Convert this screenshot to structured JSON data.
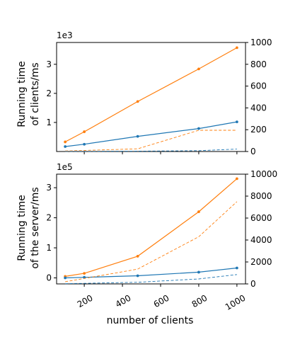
{
  "chart_data": [
    {
      "type": "line",
      "multiplier_label": "1e3",
      "ylabel": [
        "Running time",
        "of clients/ms"
      ],
      "x": [
        100,
        200,
        480,
        800,
        1000
      ],
      "left_axis": {
        "ylim": [
          0,
          3.75
        ],
        "ticks": [
          1,
          2,
          3
        ],
        "tick_labels": [
          "1",
          "2",
          "3"
        ]
      },
      "right_axis": {
        "ylim": [
          0,
          1000
        ],
        "ticks": [
          0,
          200,
          400,
          600,
          800,
          1000
        ],
        "tick_labels": [
          "0",
          "200",
          "400",
          "600",
          "800",
          "1000"
        ]
      },
      "series": [
        {
          "axis": "left",
          "style": "solid-marker",
          "color": "#ff7f0e",
          "values": [
            0.33,
            0.68,
            1.72,
            2.84,
            3.57
          ]
        },
        {
          "axis": "left",
          "style": "solid-marker",
          "color": "#1f77b4",
          "values": [
            0.17,
            0.25,
            0.52,
            0.79,
            1.02
          ]
        },
        {
          "axis": "right",
          "style": "dashed",
          "color": "#ff7f0e",
          "values": [
            5,
            10,
            25,
            195,
            195
          ]
        },
        {
          "axis": "right",
          "style": "dashed",
          "color": "#1f77b4",
          "values": [
            1,
            2,
            3,
            8,
            22
          ]
        }
      ]
    },
    {
      "type": "line",
      "multiplier_label": "1e5",
      "ylabel": [
        "Running time",
        "of the server/ms"
      ],
      "x": [
        100,
        200,
        480,
        800,
        1000
      ],
      "left_axis": {
        "ylim": [
          -0.2,
          3.45
        ],
        "ticks": [
          0,
          1,
          2,
          3
        ],
        "tick_labels": [
          "0",
          "1",
          "2",
          "3"
        ]
      },
      "right_axis": {
        "ylim": [
          0,
          10000
        ],
        "ticks": [
          0,
          2000,
          4000,
          6000,
          8000,
          10000
        ],
        "tick_labels": [
          "0",
          "2000",
          "4000",
          "6000",
          "8000",
          "10000"
        ]
      },
      "series": [
        {
          "axis": "left",
          "style": "solid-marker",
          "color": "#ff7f0e",
          "values": [
            0.05,
            0.15,
            0.72,
            2.2,
            3.3
          ]
        },
        {
          "axis": "left",
          "style": "solid-marker",
          "color": "#1f77b4",
          "values": [
            0.0,
            0.02,
            0.07,
            0.19,
            0.33
          ]
        },
        {
          "axis": "right",
          "style": "dashed",
          "color": "#ff7f0e",
          "values": [
            200,
            500,
            1350,
            4300,
            7500
          ]
        },
        {
          "axis": "right",
          "style": "dashed",
          "color": "#1f77b4",
          "values": [
            20,
            50,
            150,
            450,
            850
          ]
        }
      ]
    }
  ],
  "x_axis": {
    "xlim": [
      55,
      1045
    ],
    "ticks": [
      200,
      400,
      600,
      800,
      1000
    ],
    "tick_labels": [
      "200",
      "400",
      "600",
      "800",
      "1000"
    ],
    "label": "number of clients"
  }
}
